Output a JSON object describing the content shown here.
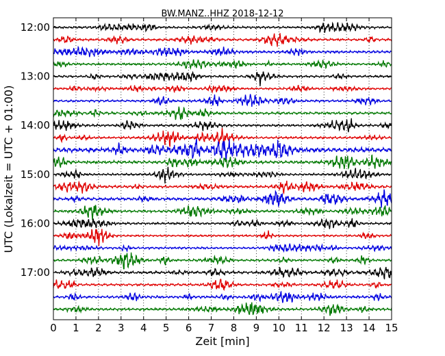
{
  "chart_data": {
    "type": "line",
    "title": "BW.MANZ..HHZ 2018-12-12",
    "xlabel": "Zeit  [min]",
    "ylabel": "UTC (Lokalzeit = UTC + 01:00)",
    "xlim": [
      0,
      15
    ],
    "x_ticks": [
      "0",
      "1",
      "2",
      "3",
      "4",
      "5",
      "6",
      "7",
      "8",
      "9",
      "10",
      "11",
      "12",
      "13",
      "14",
      "15"
    ],
    "y_ticks": [
      "12:00",
      "13:00",
      "14:00",
      "15:00",
      "16:00",
      "17:00"
    ],
    "grid": "vertical dotted",
    "trace_interval_min": 15,
    "trace_colors": [
      "#000000",
      "#e00000",
      "#0000e0",
      "#007800"
    ],
    "traces": [
      {
        "start": "12:00",
        "amplitude": 0.35
      },
      {
        "start": "12:15",
        "amplitude": 0.35
      },
      {
        "start": "12:30",
        "amplitude": 0.4
      },
      {
        "start": "12:45",
        "amplitude": 0.35
      },
      {
        "start": "13:00",
        "amplitude": 0.35
      },
      {
        "start": "13:15",
        "amplitude": 0.3
      },
      {
        "start": "13:30",
        "amplitude": 0.35
      },
      {
        "start": "13:45",
        "amplitude": 0.4
      },
      {
        "start": "14:00",
        "amplitude": 0.35
      },
      {
        "start": "14:15",
        "amplitude": 0.35
      },
      {
        "start": "14:30",
        "amplitude": 0.7
      },
      {
        "start": "14:45",
        "amplitude": 0.45
      },
      {
        "start": "15:00",
        "amplitude": 0.35
      },
      {
        "start": "15:15",
        "amplitude": 0.4
      },
      {
        "start": "15:30",
        "amplitude": 0.45
      },
      {
        "start": "15:45",
        "amplitude": 0.4
      },
      {
        "start": "16:00",
        "amplitude": 0.35
      },
      {
        "start": "16:15",
        "amplitude": 0.3
      },
      {
        "start": "16:30",
        "amplitude": 0.35
      },
      {
        "start": "16:45",
        "amplitude": 0.35
      },
      {
        "start": "17:00",
        "amplitude": 0.4
      },
      {
        "start": "17:15",
        "amplitude": 0.35
      },
      {
        "start": "17:30",
        "amplitude": 0.4
      },
      {
        "start": "17:45",
        "amplitude": 0.4
      }
    ]
  }
}
